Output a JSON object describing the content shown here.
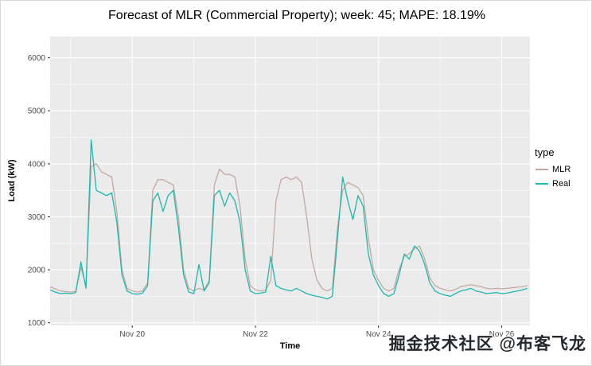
{
  "title": "Forecast of MLR (Commercial Property); week: 45; MAPE: 18.19%",
  "watermark": "掘金技术社区 @布客飞龙",
  "chart_data": {
    "type": "line",
    "title": "Forecast of MLR (Commercial Property); week: 45; MAPE: 18.19%",
    "xlabel": "Time",
    "ylabel": "Load (kW)",
    "legend_title": "type",
    "legend_position": "right",
    "grid": true,
    "panel_bg": "#EBEBEB",
    "grid_color": "#FFFFFF",
    "tick_label_color": "#4D4D4D",
    "x_unit": "hours relative to Nov 20 00:00",
    "xlim": [
      -32,
      155
    ],
    "ylim": [
      950,
      6400
    ],
    "x_ticks": [
      {
        "t": 0,
        "label": "Nov 20"
      },
      {
        "t": 48,
        "label": "Nov 22"
      },
      {
        "t": 96,
        "label": "Nov 24"
      },
      {
        "t": 144,
        "label": "Nov 26"
      }
    ],
    "x_minor_ticks": [
      -24,
      24,
      72,
      120
    ],
    "y_ticks": [
      1000,
      2000,
      3000,
      4000,
      5000,
      6000
    ],
    "y_minor_ticks": [
      1500,
      2500,
      3500,
      4500,
      5500
    ],
    "x_hours": [
      -32,
      -30,
      -28,
      -26,
      -24,
      -22,
      -20,
      -18,
      -16,
      -14,
      -12,
      -10,
      -8,
      -6,
      -4,
      -2,
      0,
      2,
      4,
      6,
      8,
      10,
      12,
      14,
      16,
      18,
      20,
      22,
      24,
      26,
      28,
      30,
      32,
      34,
      36,
      38,
      40,
      42,
      44,
      46,
      48,
      50,
      52,
      54,
      56,
      58,
      60,
      62,
      64,
      66,
      68,
      70,
      72,
      74,
      76,
      78,
      80,
      82,
      84,
      86,
      88,
      90,
      92,
      94,
      96,
      98,
      100,
      102,
      104,
      106,
      108,
      110,
      112,
      114,
      116,
      118,
      120,
      122,
      124,
      126,
      128,
      130,
      132,
      134,
      136,
      138,
      140,
      142,
      144,
      146,
      148,
      150,
      152,
      154
    ],
    "series": [
      {
        "name": "MLR",
        "color": "#C5A8A2",
        "values": [
          1680,
          1640,
          1600,
          1590,
          1580,
          1590,
          2050,
          1700,
          3950,
          4000,
          3850,
          3800,
          3750,
          3100,
          2000,
          1650,
          1600,
          1580,
          1600,
          1750,
          3500,
          3700,
          3700,
          3650,
          3600,
          3000,
          2000,
          1650,
          1600,
          1650,
          1620,
          1800,
          3600,
          3900,
          3800,
          3800,
          3750,
          3200,
          2200,
          1700,
          1620,
          1600,
          1620,
          1800,
          3300,
          3700,
          3750,
          3700,
          3750,
          3650,
          3000,
          2200,
          1800,
          1650,
          1600,
          1650,
          2800,
          3500,
          3650,
          3600,
          3550,
          3400,
          2600,
          2000,
          1800,
          1650,
          1600,
          1650,
          2000,
          2250,
          2300,
          2400,
          2450,
          2200,
          1850,
          1700,
          1650,
          1620,
          1600,
          1630,
          1680,
          1700,
          1720,
          1700,
          1680,
          1650,
          1640,
          1650,
          1640,
          1650,
          1660,
          1670,
          1680,
          1700
        ]
      },
      {
        "name": "Real",
        "color": "#1CB8B0",
        "values": [
          1620,
          1580,
          1550,
          1560,
          1550,
          1570,
          2150,
          1650,
          4450,
          3500,
          3450,
          3400,
          3450,
          2900,
          1900,
          1600,
          1550,
          1540,
          1560,
          1700,
          3300,
          3450,
          3100,
          3400,
          3500,
          2800,
          1900,
          1580,
          1550,
          2100,
          1600,
          1750,
          3400,
          3500,
          3200,
          3450,
          3300,
          2900,
          2000,
          1600,
          1550,
          1560,
          1580,
          2250,
          1700,
          1650,
          1620,
          1600,
          1650,
          1600,
          1550,
          1520,
          1500,
          1480,
          1450,
          1500,
          2600,
          3750,
          3300,
          2950,
          3400,
          3200,
          2300,
          1900,
          1700,
          1550,
          1500,
          1550,
          1900,
          2300,
          2200,
          2450,
          2350,
          2100,
          1750,
          1600,
          1550,
          1520,
          1500,
          1550,
          1600,
          1620,
          1650,
          1600,
          1580,
          1550,
          1560,
          1570,
          1550,
          1560,
          1580,
          1600,
          1620,
          1650
        ]
      }
    ]
  }
}
